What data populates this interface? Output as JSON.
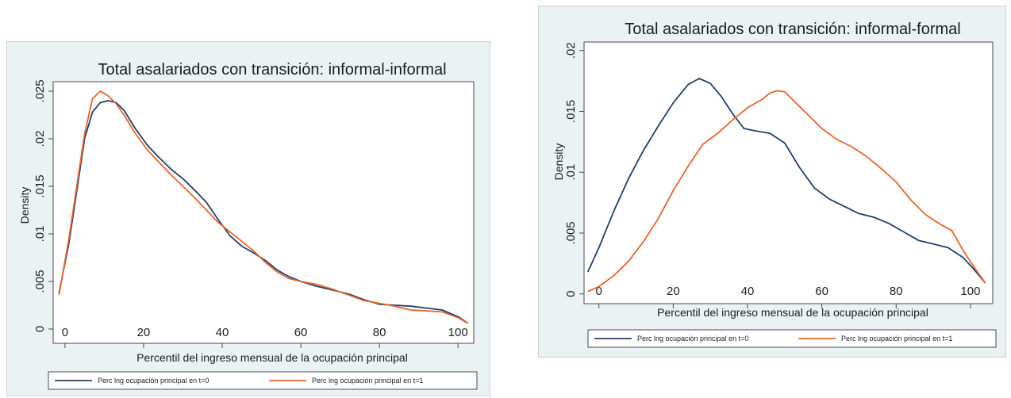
{
  "charts": [
    {
      "type": "line",
      "title": "Total asalariados con transición: informal-informal",
      "xlabel": "Percentil del ingreso mensual de la ocupación principal",
      "ylabel": "Density",
      "xlim": [
        -3,
        104
      ],
      "ylim": [
        -0.0015,
        0.026
      ],
      "xticks": [
        0,
        20,
        40,
        60,
        80,
        100
      ],
      "xtick_labels": [
        "0",
        "20",
        "40",
        "60",
        "80",
        "100"
      ],
      "yticks": [
        0,
        0.005,
        0.01,
        0.015,
        0.02,
        0.025
      ],
      "ytick_labels": [
        "0",
        ".005",
        ".01",
        ".015",
        ".02",
        ".025"
      ],
      "legend_position": "bottom",
      "series": [
        {
          "name": "Perc lng ocupación principal en t=0",
          "color": "#1f3f6a",
          "x": [
            -1.5,
            1,
            3,
            5,
            7,
            9,
            11,
            13,
            15,
            18,
            21,
            24,
            27,
            30,
            33,
            36,
            39,
            42,
            45,
            48,
            51,
            54,
            57,
            60,
            64,
            68,
            72,
            76,
            80,
            84,
            88,
            92,
            96,
            100,
            102.5
          ],
          "y": [
            0.0038,
            0.009,
            0.0145,
            0.02,
            0.0228,
            0.0238,
            0.024,
            0.0238,
            0.023,
            0.021,
            0.0193,
            0.018,
            0.0168,
            0.0158,
            0.0146,
            0.0133,
            0.0115,
            0.0098,
            0.0087,
            0.008,
            0.0072,
            0.0062,
            0.0055,
            0.005,
            0.0045,
            0.0041,
            0.0037,
            0.0031,
            0.0026,
            0.0025,
            0.0024,
            0.0022,
            0.002,
            0.0013,
            0.0006
          ]
        },
        {
          "name": "Perc lng ocupación principal en t=1",
          "color": "#e8642c",
          "x": [
            -1.5,
            1,
            3,
            5,
            7,
            9,
            11,
            13,
            15,
            18,
            21,
            24,
            27,
            30,
            33,
            36,
            39,
            42,
            45,
            48,
            51,
            54,
            57,
            60,
            64,
            68,
            72,
            76,
            80,
            84,
            88,
            92,
            96,
            100,
            102.5
          ],
          "y": [
            0.0036,
            0.0095,
            0.015,
            0.0205,
            0.0242,
            0.025,
            0.0245,
            0.0237,
            0.0225,
            0.0205,
            0.0188,
            0.0175,
            0.0162,
            0.015,
            0.0138,
            0.0125,
            0.0112,
            0.0102,
            0.0092,
            0.0082,
            0.007,
            0.006,
            0.0053,
            0.005,
            0.0047,
            0.0042,
            0.0036,
            0.003,
            0.0027,
            0.0024,
            0.002,
            0.0019,
            0.0018,
            0.0012,
            0.0006
          ]
        }
      ]
    },
    {
      "type": "line",
      "title": "Total asalariados con transición: informal-formal",
      "xlabel": "Percentil del ingreso mensual de la ocupación principal",
      "ylabel": "Density",
      "xlim": [
        -4,
        106
      ],
      "ylim": [
        -0.0008,
        0.0207
      ],
      "xticks": [
        0,
        20,
        40,
        60,
        80,
        100
      ],
      "xtick_labels": [
        "0",
        "20",
        "40",
        "60",
        "80",
        "100"
      ],
      "yticks": [
        0,
        0.005,
        0.01,
        0.015,
        0.02
      ],
      "ytick_labels": [
        "0",
        ".005",
        ".01",
        ".015",
        ".02"
      ],
      "legend_position": "bottom",
      "series": [
        {
          "name": "Perc lng ocupación principal en t=0",
          "color": "#1f3f6a",
          "x": [
            -3,
            0,
            4,
            8,
            12,
            16,
            20,
            24,
            27,
            30,
            33,
            36,
            39,
            42,
            46,
            50,
            54,
            58,
            62,
            66,
            70,
            74,
            78,
            82,
            86,
            90,
            94,
            98,
            101,
            104
          ],
          "y": [
            0.0018,
            0.0038,
            0.0068,
            0.0095,
            0.0118,
            0.0138,
            0.0157,
            0.0172,
            0.0177,
            0.0173,
            0.0162,
            0.0148,
            0.0136,
            0.0134,
            0.0132,
            0.0124,
            0.0104,
            0.0087,
            0.0078,
            0.0072,
            0.0066,
            0.0063,
            0.0058,
            0.0051,
            0.0044,
            0.0041,
            0.0038,
            0.003,
            0.002,
            0.0009
          ]
        },
        {
          "name": "Perc lng ocupación principal en t=1",
          "color": "#e8642c",
          "x": [
            -3,
            0,
            4,
            8,
            12,
            16,
            20,
            24,
            28,
            32,
            36,
            40,
            44,
            46,
            48,
            50,
            53,
            56,
            60,
            64,
            68,
            72,
            76,
            80,
            84,
            88,
            92,
            95,
            98,
            101,
            104
          ],
          "y": [
            0.0002,
            0.0006,
            0.0015,
            0.0027,
            0.0043,
            0.0062,
            0.0085,
            0.0105,
            0.0123,
            0.0132,
            0.0143,
            0.0153,
            0.016,
            0.0165,
            0.0167,
            0.0166,
            0.0157,
            0.0148,
            0.0136,
            0.0127,
            0.0121,
            0.0113,
            0.0103,
            0.0092,
            0.0077,
            0.0065,
            0.0057,
            0.0052,
            0.0036,
            0.0022,
            0.0009
          ]
        }
      ]
    }
  ]
}
